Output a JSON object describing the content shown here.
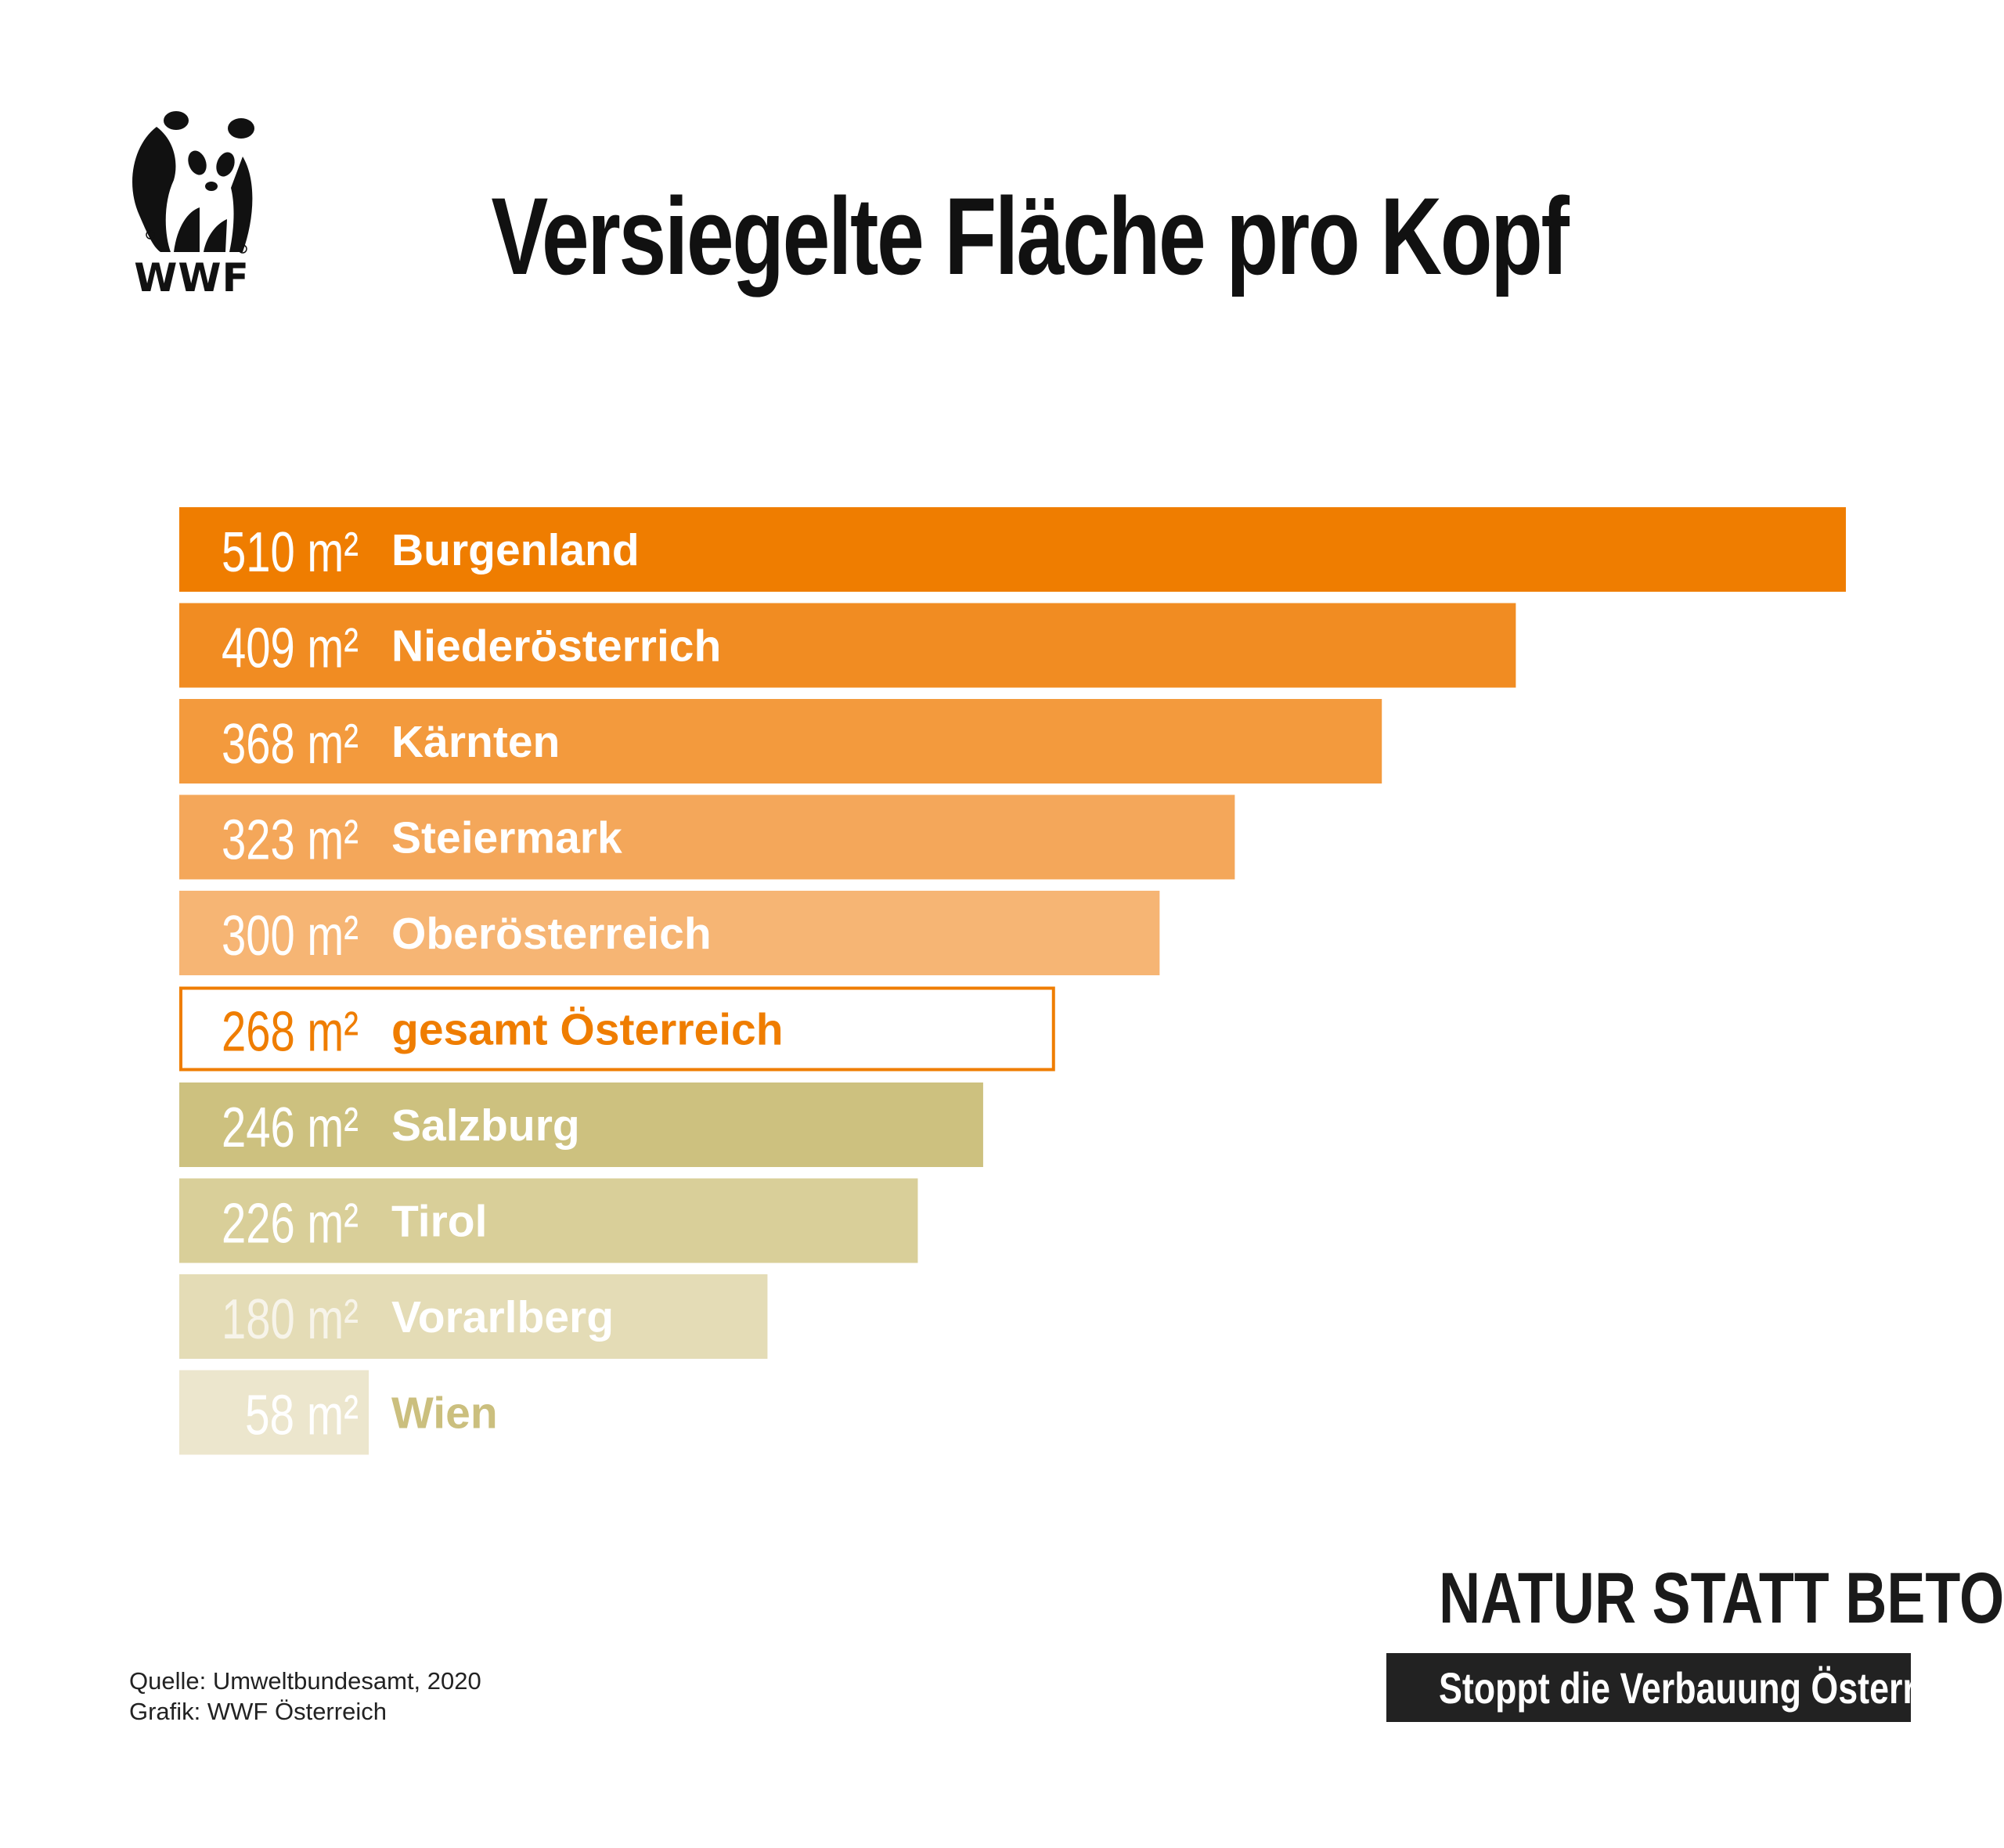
{
  "brand": {
    "logo_text": "WWF"
  },
  "chart_data": {
    "type": "bar",
    "orientation": "horizontal",
    "title": "Versiegelte Fläche pro Kopf",
    "unit": "m²",
    "xlim": [
      0,
      510
    ],
    "categories": [
      "Burgenland",
      "Niederösterrich",
      "Kärnten",
      "Steiermark",
      "Oberösterreich",
      "gesamt Österreich",
      "Salzburg",
      "Tirol",
      "Vorarlberg",
      "Wien"
    ],
    "values": [
      510,
      409,
      368,
      323,
      300,
      268,
      246,
      226,
      180,
      58
    ],
    "value_labels": [
      "510 m²",
      "409 m²",
      "368 m²",
      "323 m²",
      "300 m²",
      "268 m²",
      "246 m²",
      "226 m²",
      "180 m²",
      "58 m²"
    ],
    "highlight_category": "gesamt Österreich",
    "colors": [
      "#ef7d00",
      "#f18c22",
      "#f39a3d",
      "#f4a75a",
      "#f6b574",
      "#ffffff",
      "#cdc17f",
      "#d9cf99",
      "#e4dcb6",
      "#ece6cd"
    ],
    "highlight_color": "#ef7d00",
    "label_colors": [
      "#ffffff",
      "#ffffff",
      "#ffffff",
      "#ffffff",
      "#ffffff",
      "#ef7d00",
      "#ffffff",
      "#ffffff",
      "#ffffff",
      "#cbbf7e"
    ],
    "value_label_colors": [
      "#ffffff",
      "#ffffff",
      "#ffffff",
      "#ffffff",
      "#ffffff",
      "#ef7d00",
      "#ffffff",
      "#ffffff",
      "#f7f4ea",
      "#ffffff"
    ],
    "grid": false,
    "legend": "none"
  },
  "tagline": {
    "main": "NATUR STATT BETON",
    "sub": "Stoppt die Verbauung Österreichs!"
  },
  "source": {
    "line1": "Quelle: Umweltbundesamt, 2020",
    "line2": "Grafik: WWF Österreich"
  }
}
